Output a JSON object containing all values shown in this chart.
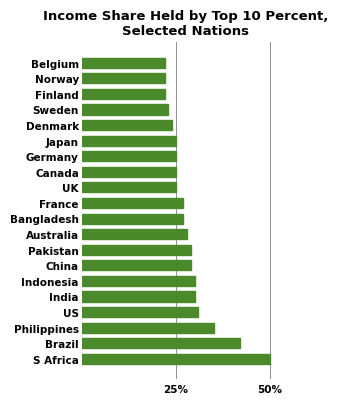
{
  "title": "Income Share Held by Top 10 Percent,\nSelected Nations",
  "categories": [
    "S Africa",
    "Brazil",
    "Philippines",
    "US",
    "India",
    "Indonesia",
    "China",
    "Pakistan",
    "Australia",
    "Bangladesh",
    "France",
    "UK",
    "Canada",
    "Germany",
    "Japan",
    "Denmark",
    "Sweden",
    "Finland",
    "Norway",
    "Belgium"
  ],
  "values": [
    50,
    42,
    35,
    31,
    30,
    30,
    29,
    29,
    28,
    27,
    27,
    25,
    25,
    25,
    25,
    24,
    23,
    22,
    22,
    22
  ],
  "bar_color": "#4a8a2a",
  "xlim": [
    0,
    55
  ],
  "xticks": [
    25,
    50
  ],
  "xticklabels": [
    "25%",
    "50%"
  ],
  "background_color": "#ffffff",
  "title_fontsize": 9.5,
  "tick_fontsize": 7.5,
  "bar_height": 0.65
}
